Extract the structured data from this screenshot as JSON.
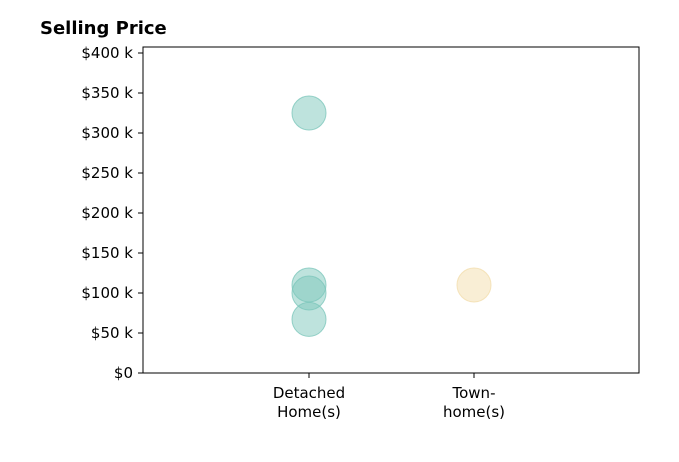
{
  "chart_data": {
    "type": "scatter",
    "title": "Selling Price",
    "xlabel": "",
    "ylabel": "",
    "categories": [
      [
        "Detached",
        "Home(s)"
      ],
      [
        "Town-",
        "home(s)"
      ]
    ],
    "ylim": [
      0,
      400000
    ],
    "yticks": [
      0,
      50000,
      100000,
      150000,
      200000,
      250000,
      300000,
      350000,
      400000
    ],
    "ytick_labels": [
      "$0",
      "$50 k",
      "$100 k",
      "$150 k",
      "$200 k",
      "$250 k",
      "$300 k",
      "$350 k",
      "$400 k"
    ],
    "grid": false,
    "series": [
      {
        "category": 0,
        "color": "#7dc7bc",
        "values": [
          325000,
          110000,
          100000,
          67000
        ]
      },
      {
        "category": 1,
        "color": "#f3ddac",
        "values": [
          110000
        ]
      }
    ]
  }
}
